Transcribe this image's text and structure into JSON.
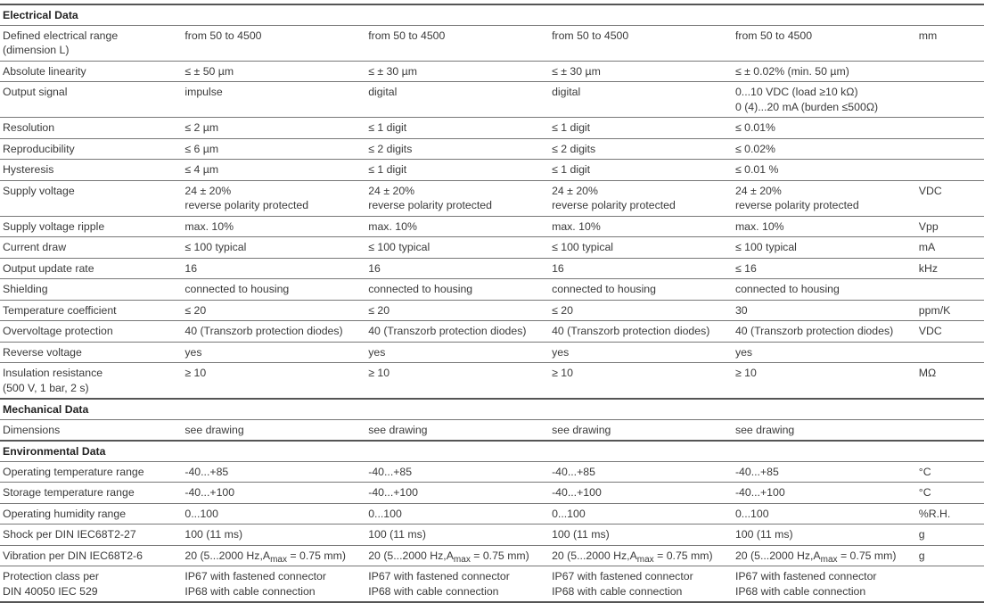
{
  "sections": [
    {
      "title": "Electrical Data",
      "rows": [
        {
          "label": [
            "Defined electrical range",
            "(dimension L)"
          ],
          "values": [
            [
              "from 50 to 4500"
            ],
            [
              "from 50 to 4500"
            ],
            [
              "from 50 to 4500"
            ],
            [
              "from 50 to 4500"
            ]
          ],
          "unit": "mm"
        },
        {
          "label": [
            "Absolute linearity"
          ],
          "values": [
            [
              "≤ ± 50 µm"
            ],
            [
              "≤ ± 30 µm"
            ],
            [
              "≤ ± 30 µm"
            ],
            [
              "≤ ± 0.02% (min. 50 µm)"
            ]
          ],
          "unit": ""
        },
        {
          "label": [
            "Output signal"
          ],
          "values": [
            [
              "impulse"
            ],
            [
              "digital"
            ],
            [
              "digital"
            ],
            [
              "0...10 VDC (load ≥10 kΩ)",
              "0 (4)...20 mA (burden ≤500Ω)"
            ]
          ],
          "unit": ""
        },
        {
          "label": [
            "Resolution"
          ],
          "values": [
            [
              "≤ 2 µm"
            ],
            [
              "≤ 1 digit"
            ],
            [
              "≤ 1 digit"
            ],
            [
              "≤  0.01%"
            ]
          ],
          "unit": ""
        },
        {
          "label": [
            "Reproducibility"
          ],
          "values": [
            [
              "≤ 6 µm"
            ],
            [
              "≤ 2 digits"
            ],
            [
              "≤ 2 digits"
            ],
            [
              "≤  0.02%"
            ]
          ],
          "unit": ""
        },
        {
          "label": [
            "Hysteresis"
          ],
          "values": [
            [
              "≤ 4 µm"
            ],
            [
              "≤ 1 digit"
            ],
            [
              "≤ 1 digit"
            ],
            [
              "≤  0.01 %"
            ]
          ],
          "unit": ""
        },
        {
          "label": [
            "Supply voltage"
          ],
          "values": [
            [
              "24 ± 20%",
              "reverse polarity protected"
            ],
            [
              "24 ± 20%",
              "reverse polarity protected"
            ],
            [
              "24 ± 20%",
              "reverse polarity protected"
            ],
            [
              "24 ± 20%",
              "reverse polarity protected"
            ]
          ],
          "unit": "VDC"
        },
        {
          "label": [
            "Supply voltage ripple"
          ],
          "values": [
            [
              "max. 10%"
            ],
            [
              "max. 10%"
            ],
            [
              "max. 10%"
            ],
            [
              "max. 10%"
            ]
          ],
          "unit": "Vpp"
        },
        {
          "label": [
            "Current draw"
          ],
          "values": [
            [
              "≤ 100 typical"
            ],
            [
              "≤ 100 typical"
            ],
            [
              "≤ 100 typical"
            ],
            [
              "≤ 100 typical"
            ]
          ],
          "unit": "mA"
        },
        {
          "label": [
            "Output update rate"
          ],
          "values": [
            [
              "16"
            ],
            [
              "16"
            ],
            [
              "16"
            ],
            [
              "≤ 16"
            ]
          ],
          "unit": "kHz"
        },
        {
          "label": [
            "Shielding"
          ],
          "values": [
            [
              "connected to housing"
            ],
            [
              "connected to housing"
            ],
            [
              "connected to housing"
            ],
            [
              "connected to housing"
            ]
          ],
          "unit": ""
        },
        {
          "label": [
            "Temperature coefficient"
          ],
          "values": [
            [
              "≤ 20"
            ],
            [
              "≤ 20"
            ],
            [
              "≤ 20"
            ],
            [
              "30"
            ]
          ],
          "unit": "ppm/K"
        },
        {
          "label": [
            "Overvoltage protection"
          ],
          "values": [
            [
              "40 (Transzorb protection diodes)"
            ],
            [
              "40 (Transzorb protection diodes)"
            ],
            [
              "40 (Transzorb protection diodes)"
            ],
            [
              "40 (Transzorb protection diodes)"
            ]
          ],
          "unit": "VDC"
        },
        {
          "label": [
            "Reverse voltage"
          ],
          "values": [
            [
              "yes"
            ],
            [
              "yes"
            ],
            [
              "yes"
            ],
            [
              "yes"
            ]
          ],
          "unit": ""
        },
        {
          "label": [
            "Insulation resistance",
            "(500 V, 1 bar, 2 s)"
          ],
          "values": [
            [
              "≥ 10"
            ],
            [
              "≥ 10"
            ],
            [
              "≥ 10"
            ],
            [
              "≥ 10"
            ]
          ],
          "unit": "MΩ"
        }
      ]
    },
    {
      "title": "Mechanical Data",
      "rows": [
        {
          "label": [
            "Dimensions"
          ],
          "values": [
            [
              "see drawing"
            ],
            [
              "see drawing"
            ],
            [
              "see drawing"
            ],
            [
              "see drawing"
            ]
          ],
          "unit": ""
        }
      ]
    },
    {
      "title": "Environmental Data",
      "rows": [
        {
          "label": [
            "Operating temperature range"
          ],
          "values": [
            [
              "-40...+85"
            ],
            [
              "-40...+85"
            ],
            [
              "-40...+85"
            ],
            [
              "-40...+85"
            ]
          ],
          "unit": "°C"
        },
        {
          "label": [
            "Storage temperature range"
          ],
          "values": [
            [
              "-40...+100"
            ],
            [
              "-40...+100"
            ],
            [
              "-40...+100"
            ],
            [
              "-40...+100"
            ]
          ],
          "unit": "°C"
        },
        {
          "label": [
            "Operating humidity range"
          ],
          "values": [
            [
              "0...100"
            ],
            [
              "0...100"
            ],
            [
              "0...100"
            ],
            [
              "0...100"
            ]
          ],
          "unit": "%R.H."
        },
        {
          "label": [
            "Shock per DIN IEC68T2-27"
          ],
          "values": [
            [
              "100 (11 ms)"
            ],
            [
              "100 (11 ms)"
            ],
            [
              "100 (11 ms)"
            ],
            [
              "100 (11 ms)"
            ]
          ],
          "unit": "g"
        },
        {
          "label": [
            "Vibration per DIN IEC68T2-6"
          ],
          "values": [
            [
              "20 (5...2000 Hz,A{max} = 0.75 mm)"
            ],
            [
              "20 (5...2000 Hz,A{max} = 0.75 mm)"
            ],
            [
              "20 (5...2000 Hz,A{max} = 0.75 mm)"
            ],
            [
              "20 (5...2000 Hz,A{max} = 0.75 mm)"
            ]
          ],
          "unit": "g"
        },
        {
          "label": [
            "Protection class per",
            "DIN 40050 IEC 529"
          ],
          "values": [
            [
              "IP67 with fastened connector",
              "IP68 with cable connection"
            ],
            [
              "IP67 with fastened connector",
              "IP68 with cable connection"
            ],
            [
              "IP67 with fastened connector",
              "IP68 with cable connection"
            ],
            [
              "IP67 with fastened connector",
              "IP68 with cable connection"
            ]
          ],
          "unit": ""
        }
      ]
    }
  ]
}
